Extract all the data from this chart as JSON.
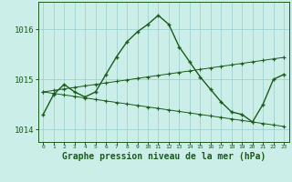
{
  "title": "Graphe pression niveau de la mer (hPa)",
  "background_color": "#cceee8",
  "grid_color": "#99cccc",
  "line_color": "#1a5c1a",
  "x_labels": [
    "0",
    "1",
    "2",
    "3",
    "4",
    "5",
    "6",
    "7",
    "8",
    "9",
    "10",
    "11",
    "12",
    "13",
    "14",
    "15",
    "16",
    "17",
    "18",
    "19",
    "20",
    "21",
    "22",
    "23"
  ],
  "main_series": [
    1014.3,
    1014.7,
    1014.9,
    1014.75,
    1014.65,
    1014.75,
    1015.1,
    1015.45,
    1015.75,
    1015.95,
    1016.1,
    1016.28,
    1016.1,
    1015.65,
    1015.35,
    1015.05,
    1014.8,
    1014.55,
    1014.35,
    1014.3,
    1014.15,
    1014.5,
    1015.0,
    1015.1
  ],
  "trend_up": [
    1014.75,
    1014.78,
    1014.81,
    1014.84,
    1014.87,
    1014.9,
    1014.93,
    1014.96,
    1014.99,
    1015.02,
    1015.05,
    1015.08,
    1015.11,
    1015.14,
    1015.17,
    1015.2,
    1015.23,
    1015.26,
    1015.29,
    1015.32,
    1015.35,
    1015.38,
    1015.41,
    1015.44
  ],
  "trend_down": [
    1014.75,
    1014.72,
    1014.69,
    1014.66,
    1014.63,
    1014.6,
    1014.57,
    1014.54,
    1014.51,
    1014.48,
    1014.45,
    1014.42,
    1014.39,
    1014.36,
    1014.33,
    1014.3,
    1014.27,
    1014.24,
    1014.21,
    1014.18,
    1014.15,
    1014.12,
    1014.09,
    1014.06
  ],
  "ylim": [
    1013.75,
    1016.55
  ],
  "yticks": [
    1014,
    1015,
    1016
  ],
  "marker_size": 2.5
}
